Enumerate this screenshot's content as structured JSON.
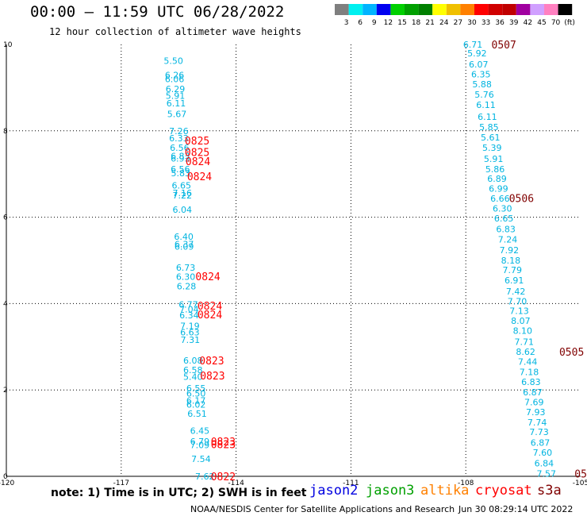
{
  "header": {
    "title": "00:00 — 11:59 UTC 06/28/2022",
    "subtitle": "12 hour collection of altimeter wave heights"
  },
  "legend": {
    "colors": [
      "#7f7f7f",
      "#00f0f0",
      "#00b4ff",
      "#0000f0",
      "#00d000",
      "#00a000",
      "#008000",
      "#ffff00",
      "#f0c000",
      "#ff8000",
      "#ff0000",
      "#d00000",
      "#c00000",
      "#a000a0",
      "#d0a0ff",
      "#ff80c0",
      "#000000"
    ],
    "tick_labels": [
      "3",
      "6",
      "9",
      "12",
      "15",
      "18",
      "21",
      "24",
      "27",
      "30",
      "33",
      "36",
      "39",
      "42",
      "45",
      "70",
      "(ft)"
    ]
  },
  "axes": {
    "x_ticks": [
      "-120",
      "-117",
      "-114",
      "-111",
      "-108",
      "-105"
    ],
    "y_ticks": [
      "0",
      "2",
      "4",
      "6",
      "8",
      "10"
    ]
  },
  "tracks": [
    {
      "name": "track-1",
      "labels": [
        {
          "text": "5.50",
          "lon": -115.89,
          "lat": 9.62
        },
        {
          "text": "6.26",
          "lon": -115.86,
          "lat": 9.29
        },
        {
          "text": "6.06",
          "lon": -115.86,
          "lat": 9.2
        },
        {
          "text": "6.29",
          "lon": -115.84,
          "lat": 8.97
        },
        {
          "text": "5.91",
          "lon": -115.84,
          "lat": 8.81
        },
        {
          "text": "6.11",
          "lon": -115.82,
          "lat": 8.64
        },
        {
          "text": "5.67",
          "lon": -115.8,
          "lat": 8.39
        },
        {
          "text": "7.26",
          "lon": -115.75,
          "lat": 8.0
        },
        {
          "text": "6.33",
          "lon": -115.75,
          "lat": 7.83
        },
        {
          "text": "6.56",
          "lon": -115.73,
          "lat": 7.61
        },
        {
          "text": "6.83",
          "lon": -115.71,
          "lat": 7.42
        },
        {
          "text": "6.93",
          "lon": -115.71,
          "lat": 7.36
        },
        {
          "text": "6.56",
          "lon": -115.71,
          "lat": 7.11
        },
        {
          "text": "5.83",
          "lon": -115.7,
          "lat": 7.02
        },
        {
          "text": "6.65",
          "lon": -115.68,
          "lat": 6.74
        },
        {
          "text": "7.16",
          "lon": -115.66,
          "lat": 6.56
        },
        {
          "text": "7.22",
          "lon": -115.66,
          "lat": 6.51
        },
        {
          "text": "6.04",
          "lon": -115.66,
          "lat": 6.18
        },
        {
          "text": "6.40",
          "lon": -115.62,
          "lat": 5.55
        },
        {
          "text": "6.37",
          "lon": -115.61,
          "lat": 5.38
        },
        {
          "text": "6.09",
          "lon": -115.61,
          "lat": 5.32
        },
        {
          "text": "6.73",
          "lon": -115.57,
          "lat": 4.83
        },
        {
          "text": "6.30",
          "lon": -115.57,
          "lat": 4.62
        },
        {
          "text": "6.28",
          "lon": -115.55,
          "lat": 4.4
        },
        {
          "text": "6.77",
          "lon": -115.5,
          "lat": 3.98
        },
        {
          "text": "7.04",
          "lon": -115.48,
          "lat": 3.87
        },
        {
          "text": "6.34",
          "lon": -115.48,
          "lat": 3.73
        },
        {
          "text": "7.19",
          "lon": -115.46,
          "lat": 3.48
        },
        {
          "text": "6.63",
          "lon": -115.46,
          "lat": 3.34
        },
        {
          "text": "7.31",
          "lon": -115.45,
          "lat": 3.16
        },
        {
          "text": "6.08",
          "lon": -115.38,
          "lat": 2.68
        },
        {
          "text": "6.58",
          "lon": -115.38,
          "lat": 2.46
        },
        {
          "text": "5.40",
          "lon": -115.38,
          "lat": 2.31
        },
        {
          "text": "6.55",
          "lon": -115.3,
          "lat": 2.04
        },
        {
          "text": "6.50",
          "lon": -115.3,
          "lat": 1.92
        },
        {
          "text": "6.17",
          "lon": -115.3,
          "lat": 1.76
        },
        {
          "text": "6.02",
          "lon": -115.3,
          "lat": 1.66
        },
        {
          "text": "6.51",
          "lon": -115.27,
          "lat": 1.45
        },
        {
          "text": "6.45",
          "lon": -115.2,
          "lat": 1.06
        },
        {
          "text": "6.79",
          "lon": -115.2,
          "lat": 0.81
        },
        {
          "text": "7.09",
          "lon": -115.2,
          "lat": 0.73
        },
        {
          "text": "7.54",
          "lon": -115.17,
          "lat": 0.4
        },
        {
          "text": "7.62",
          "lon": -115.07,
          "lat": 0.0
        }
      ]
    },
    {
      "name": "track-2",
      "labels": [
        {
          "text": "6.71",
          "lon": -108.07,
          "lat": 10.0
        },
        {
          "text": "5.92",
          "lon": -107.96,
          "lat": 9.8
        },
        {
          "text": "6.07",
          "lon": -107.92,
          "lat": 9.54
        },
        {
          "text": "6.35",
          "lon": -107.86,
          "lat": 9.31
        },
        {
          "text": "5.88",
          "lon": -107.83,
          "lat": 9.08
        },
        {
          "text": "5.76",
          "lon": -107.77,
          "lat": 8.84
        },
        {
          "text": "6.11",
          "lon": -107.73,
          "lat": 8.6
        },
        {
          "text": "6.11",
          "lon": -107.69,
          "lat": 8.33
        },
        {
          "text": "5.85",
          "lon": -107.65,
          "lat": 8.09
        },
        {
          "text": "5.61",
          "lon": -107.61,
          "lat": 7.85
        },
        {
          "text": "5.39",
          "lon": -107.57,
          "lat": 7.61
        },
        {
          "text": "5.91",
          "lon": -107.53,
          "lat": 7.35
        },
        {
          "text": "5.86",
          "lon": -107.49,
          "lat": 7.11
        },
        {
          "text": "6.89",
          "lon": -107.44,
          "lat": 6.89
        },
        {
          "text": "6.99",
          "lon": -107.4,
          "lat": 6.66
        },
        {
          "text": "6.66",
          "lon": -107.36,
          "lat": 6.43
        },
        {
          "text": "6.30",
          "lon": -107.3,
          "lat": 6.2
        },
        {
          "text": "6.65",
          "lon": -107.26,
          "lat": 5.97
        },
        {
          "text": "6.83",
          "lon": -107.21,
          "lat": 5.73
        },
        {
          "text": "7.24",
          "lon": -107.16,
          "lat": 5.49
        },
        {
          "text": "7.92",
          "lon": -107.12,
          "lat": 5.24
        },
        {
          "text": "8.18",
          "lon": -107.08,
          "lat": 5.0
        },
        {
          "text": "7.79",
          "lon": -107.04,
          "lat": 4.78
        },
        {
          "text": "6.91",
          "lon": -106.99,
          "lat": 4.54
        },
        {
          "text": "7.42",
          "lon": -106.95,
          "lat": 4.28
        },
        {
          "text": "7.70",
          "lon": -106.91,
          "lat": 4.05
        },
        {
          "text": "7.13",
          "lon": -106.86,
          "lat": 3.83
        },
        {
          "text": "8.07",
          "lon": -106.82,
          "lat": 3.6
        },
        {
          "text": "8.10",
          "lon": -106.77,
          "lat": 3.37
        },
        {
          "text": "7.71",
          "lon": -106.73,
          "lat": 3.12
        },
        {
          "text": "8.62",
          "lon": -106.69,
          "lat": 2.89
        },
        {
          "text": "7.44",
          "lon": -106.64,
          "lat": 2.66
        },
        {
          "text": "7.18",
          "lon": -106.6,
          "lat": 2.42
        },
        {
          "text": "6.83",
          "lon": -106.55,
          "lat": 2.19
        },
        {
          "text": "6.87",
          "lon": -106.51,
          "lat": 1.95
        },
        {
          "text": "7.69",
          "lon": -106.47,
          "lat": 1.72
        },
        {
          "text": "7.93",
          "lon": -106.43,
          "lat": 1.49
        },
        {
          "text": "7.74",
          "lon": -106.39,
          "lat": 1.25
        },
        {
          "text": "7.73",
          "lon": -106.34,
          "lat": 1.03
        },
        {
          "text": "6.87",
          "lon": -106.31,
          "lat": 0.78
        },
        {
          "text": "7.60",
          "lon": -106.25,
          "lat": 0.55
        },
        {
          "text": "6.84",
          "lon": -106.21,
          "lat": 0.3
        },
        {
          "text": "7.57",
          "lon": -106.15,
          "lat": 0.06
        }
      ]
    }
  ],
  "time_labels": [
    {
      "text": "0825",
      "lon": -115.34,
      "lat": 7.78,
      "color": "#ff0000"
    },
    {
      "text": "0825",
      "lon": -115.34,
      "lat": 7.51,
      "color": "#ff0000"
    },
    {
      "text": "0824",
      "lon": -115.32,
      "lat": 7.3,
      "color": "#ff0000"
    },
    {
      "text": "0824",
      "lon": -115.28,
      "lat": 6.95,
      "color": "#ff0000"
    },
    {
      "text": "0824",
      "lon": -115.06,
      "lat": 4.63,
      "color": "#ff0000"
    },
    {
      "text": "0824",
      "lon": -115.01,
      "lat": 3.95,
      "color": "#ff0000"
    },
    {
      "text": "0824",
      "lon": -115.01,
      "lat": 3.75,
      "color": "#ff0000"
    },
    {
      "text": "0823",
      "lon": -114.96,
      "lat": 2.68,
      "color": "#ff0000"
    },
    {
      "text": "0823",
      "lon": -114.94,
      "lat": 2.33,
      "color": "#ff0000"
    },
    {
      "text": "0823",
      "lon": -114.66,
      "lat": 0.81,
      "color": "#ff0000"
    },
    {
      "text": "0823",
      "lon": -114.66,
      "lat": 0.74,
      "color": "#ff0000"
    },
    {
      "text": "0822",
      "lon": -114.66,
      "lat": 0.0,
      "color": "#ff0000"
    },
    {
      "text": "0507",
      "lon": -107.33,
      "lat": 10.0,
      "color": "#800000"
    },
    {
      "text": "0506",
      "lon": -106.87,
      "lat": 6.44,
      "color": "#800000"
    },
    {
      "text": "0505",
      "lon": -105.56,
      "lat": 2.89,
      "color": "#800000"
    },
    {
      "text": "05",
      "lon": -105.16,
      "lat": 0.06,
      "color": "#800000"
    }
  ],
  "colors": {
    "value_label": "#00b4e0",
    "grid": "#000000"
  },
  "footer": {
    "note": "note:  1) Time is in UTC;  2) SWH is in feet",
    "satellites": [
      {
        "name": "jason2",
        "color": "#0000e0"
      },
      {
        "name": "jason3",
        "color": "#00a000"
      },
      {
        "name": "altika",
        "color": "#ff8000"
      },
      {
        "name": "cryosat",
        "color": "#ff0000"
      },
      {
        "name": "s3a",
        "color": "#800000"
      }
    ],
    "credit": "NOAA/NESDIS Center for Satellite Applications and Research",
    "timestamp": "Jun 30 08:29:14 UTC 2022"
  }
}
